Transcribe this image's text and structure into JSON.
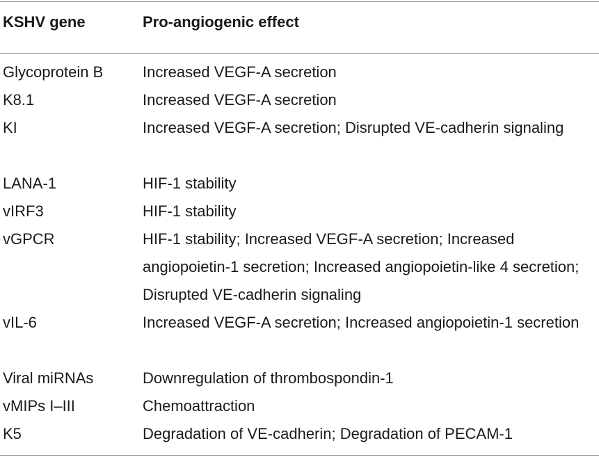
{
  "table": {
    "headers": {
      "gene": "KSHV gene",
      "effect": "Pro-angiogenic effect"
    },
    "rows": [
      {
        "gene": "Glycoprotein B",
        "effect": "Increased VEGF-A secretion"
      },
      {
        "gene": "K8.1",
        "effect": "Increased VEGF-A secretion"
      },
      {
        "gene": "KI",
        "effect": "Increased VEGF-A secretion; Disrupted VE-cadherin signaling"
      },
      {
        "gene": "LANA-1",
        "effect": "HIF-1 stability"
      },
      {
        "gene": "vIRF3",
        "effect": "HIF-1 stability"
      },
      {
        "gene": "vGPCR",
        "effect": "HIF-1 stability; Increased VEGF-A secretion; Increased angiopoietin-1 secretion; Increased angiopoietin-like 4 secretion; Disrupted VE-cadherin signaling"
      },
      {
        "gene": "vIL-6",
        "effect": "Increased VEGF-A secretion; Increased angiopoietin-1 secretion"
      },
      {
        "gene": "Viral miRNAs",
        "effect": "Downregulation of thrombospondin-1"
      },
      {
        "gene": "vMIPs I–III",
        "effect": "Chemoattraction"
      },
      {
        "gene": "K5",
        "effect": "Degradation of VE-cadherin; Degradation of PECAM-1"
      }
    ]
  }
}
